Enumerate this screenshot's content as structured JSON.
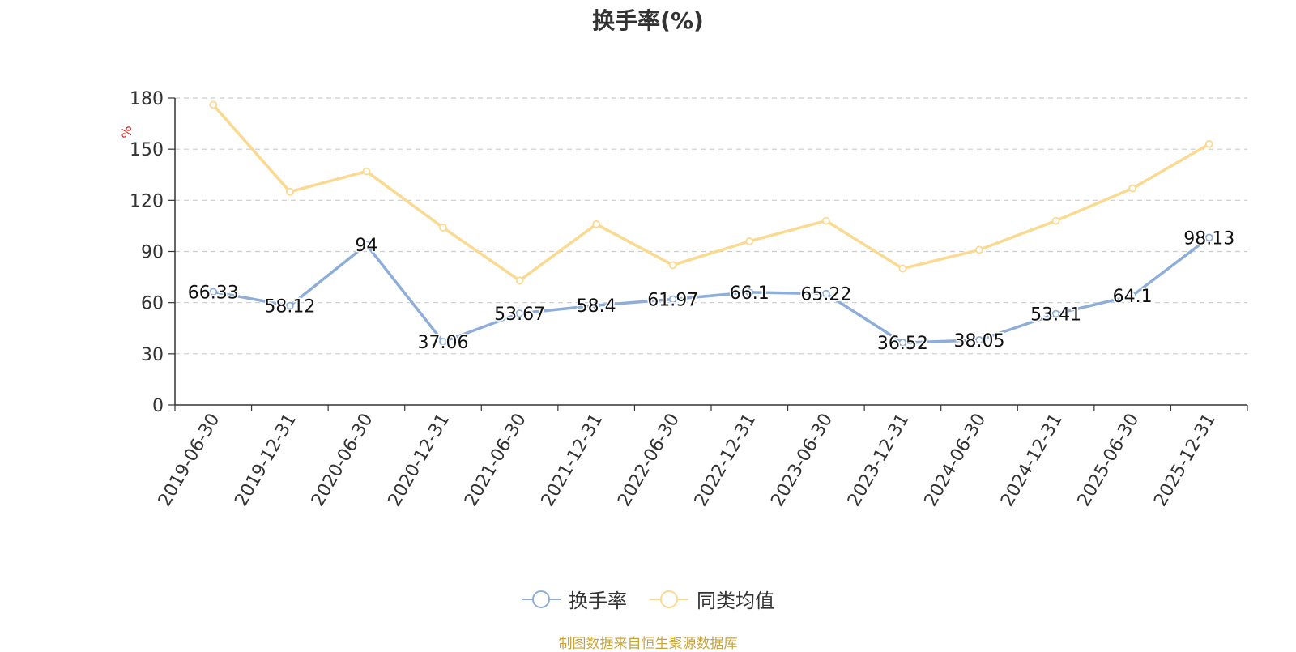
{
  "chart_data": {
    "type": "line",
    "title": "换手率(%)",
    "ylabel": "%",
    "xlabel": "",
    "ylim": [
      0,
      180
    ],
    "yticks": [
      0,
      30,
      60,
      90,
      120,
      150,
      180
    ],
    "grid": true,
    "legend_position": "bottom",
    "categories": [
      "2019-06-30",
      "2019-12-31",
      "2020-06-30",
      "2020-12-31",
      "2021-06-30",
      "2021-12-31",
      "2022-06-30",
      "2022-12-31",
      "2023-06-30",
      "2023-12-31",
      "2024-06-30",
      "2024-12-31",
      "2025-06-30",
      "2025-12-31"
    ],
    "series": [
      {
        "name": "换手率",
        "color": "#8eaed8",
        "show_labels": true,
        "values": [
          66.33,
          58.12,
          94,
          37.06,
          53.67,
          58.4,
          61.97,
          66.1,
          65.22,
          36.52,
          38.05,
          53.41,
          64.1,
          98.13
        ]
      },
      {
        "name": "同类均值",
        "color": "#fad990",
        "show_labels": false,
        "values": [
          176,
          125,
          137,
          104,
          73,
          106,
          82,
          96,
          108,
          80,
          91,
          108,
          127,
          153
        ]
      }
    ],
    "source": "制图数据来自恒生聚源数据库"
  }
}
